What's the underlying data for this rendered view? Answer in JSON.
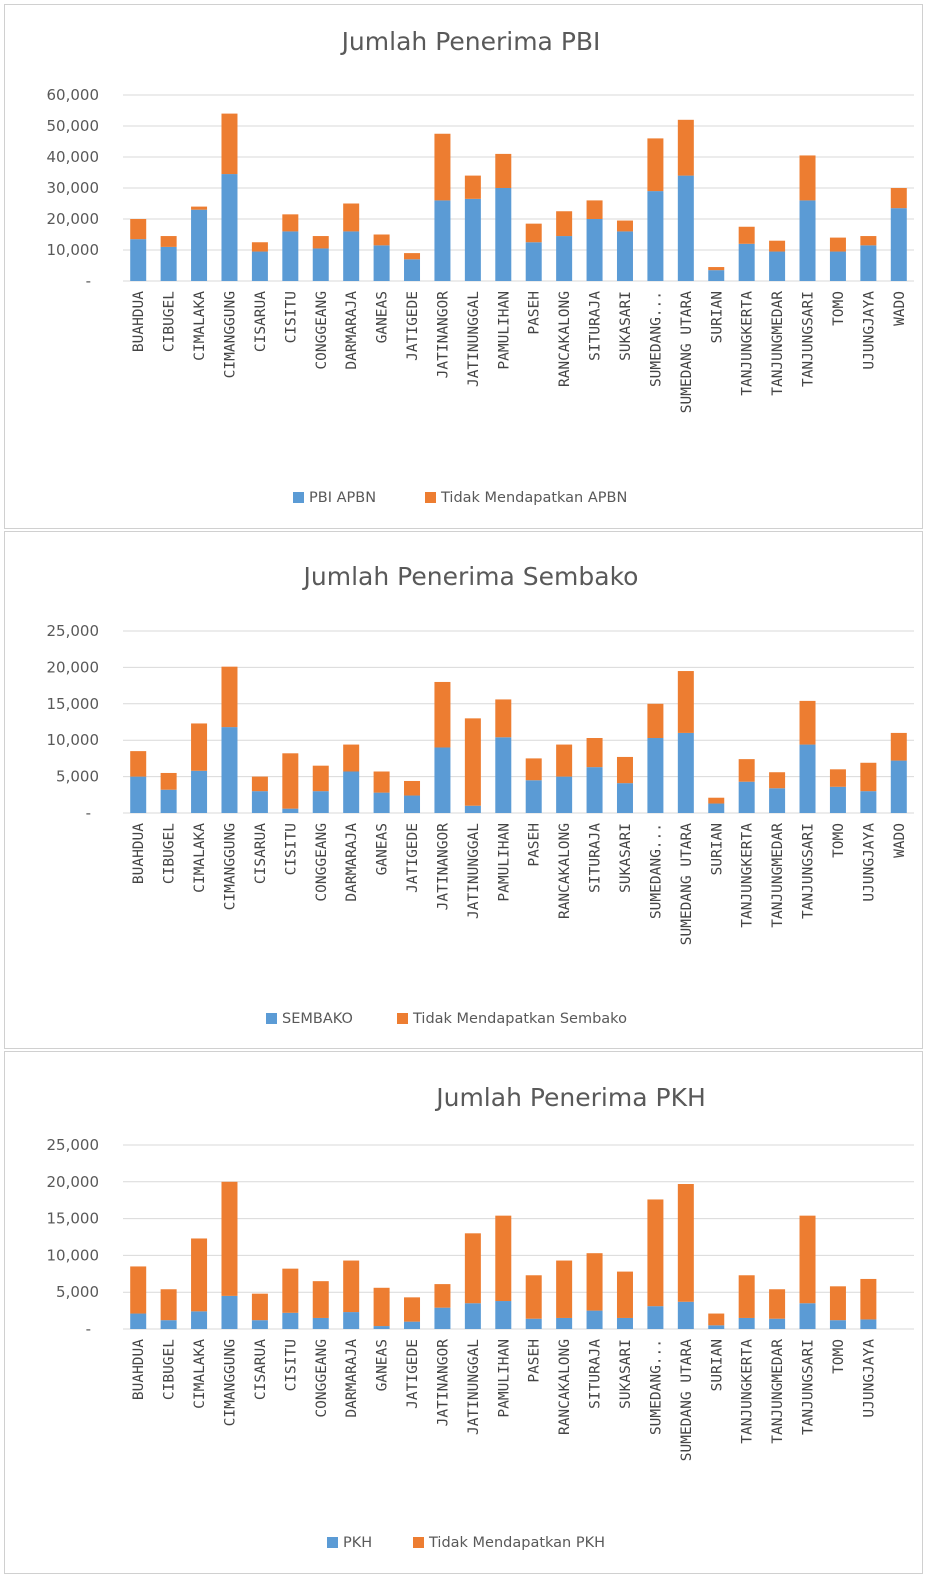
{
  "colors": {
    "series1": "#5B9BD5",
    "series2": "#ED7D31"
  },
  "chart_data": [
    {
      "type": "bar",
      "stacked": true,
      "title": "Jumlah Penerima PBI",
      "xlabel": "",
      "ylabel": "",
      "ylim": [
        0,
        60000
      ],
      "yticks": [
        "-",
        "10,000",
        "20,000",
        "30,000",
        "40,000",
        "50,000",
        "60,000"
      ],
      "grid": true,
      "legend": "bottom",
      "categories": [
        "BUAHDUA",
        "CIBUGEL",
        "CIMALAKA",
        "CIMANGGUNG",
        "CISARUA",
        "CISITU",
        "CONGGEANG",
        "DARMARAJA",
        "GANEAS",
        "JATIGEDE",
        "JATINANGOR",
        "JATINUNGGAL",
        "PAMULIHAN",
        "PASEH",
        "RANCAKALONG",
        "SITURAJA",
        "SUKASARI",
        "SUMEDANG...",
        "SUMEDANG UTARA",
        "SURIAN",
        "TANJUNGKERTA",
        "TANJUNGMEDAR",
        "TANJUNGSARI",
        "TOMO",
        "UJUNGJAYA",
        "WADO"
      ],
      "series": [
        {
          "name": "PBI APBN",
          "values": [
            13500,
            11000,
            23000,
            34500,
            9500,
            16000,
            10500,
            16000,
            11500,
            7000,
            26000,
            26500,
            30000,
            12500,
            14500,
            20000,
            16000,
            29000,
            34000,
            3500,
            12000,
            9500,
            26000,
            9500,
            11500,
            23500
          ]
        },
        {
          "name": "Tidak Mendapatkan APBN",
          "values": [
            6500,
            3500,
            1000,
            19500,
            3000,
            5500,
            4000,
            9000,
            3500,
            2000,
            21500,
            7500,
            11000,
            6000,
            8000,
            6000,
            3500,
            17000,
            18000,
            1000,
            5500,
            3500,
            14500,
            4500,
            3000,
            6500
          ]
        }
      ]
    },
    {
      "type": "bar",
      "stacked": true,
      "title": "Jumlah Penerima Sembako",
      "xlabel": "",
      "ylabel": "",
      "ylim": [
        0,
        25000
      ],
      "yticks": [
        "-",
        "5,000",
        "10,000",
        "15,000",
        "20,000",
        "25,000"
      ],
      "grid": true,
      "legend": "bottom",
      "categories": [
        "BUAHDUA",
        "CIBUGEL",
        "CIMALAKA",
        "CIMANGGUNG",
        "CISARUA",
        "CISITU",
        "CONGGEANG",
        "DARMARAJA",
        "GANEAS",
        "JATIGEDE",
        "JATINANGOR",
        "JATINUNGGAL",
        "PAMULIHAN",
        "PASEH",
        "RANCAKALONG",
        "SITURAJA",
        "SUKASARI",
        "SUMEDANG...",
        "SUMEDANG UTARA",
        "SURIAN",
        "TANJUNGKERTA",
        "TANJUNGMEDAR",
        "TANJUNGSARI",
        "TOMO",
        "UJUNGJAYA",
        "WADO"
      ],
      "series": [
        {
          "name": "SEMBAKO",
          "values": [
            5000,
            3200,
            5800,
            11800,
            3000,
            600,
            3000,
            5700,
            2800,
            2400,
            9000,
            1000,
            10400,
            4500,
            5000,
            6300,
            4100,
            10300,
            11000,
            1300,
            4300,
            3400,
            9400,
            3600,
            3000,
            7200
          ]
        },
        {
          "name": "Tidak Mendapatkan Sembako",
          "values": [
            3500,
            2300,
            6500,
            8300,
            2000,
            7600,
            3500,
            3700,
            2900,
            2000,
            9000,
            12000,
            5200,
            3000,
            4400,
            4000,
            3600,
            4700,
            8500,
            800,
            3100,
            2200,
            6000,
            2400,
            3900,
            3800
          ]
        }
      ]
    },
    {
      "type": "bar",
      "stacked": true,
      "title": "Jumlah Penerima PKH",
      "xlabel": "",
      "ylabel": "",
      "ylim": [
        0,
        25000
      ],
      "yticks": [
        "-",
        "5,000",
        "10,000",
        "15,000",
        "20,000",
        "25,000"
      ],
      "grid": true,
      "legend": "bottom",
      "categories": [
        "BUAHDUA",
        "CIBUGEL",
        "CIMALAKA",
        "CIMANGGUNG",
        "CISARUA",
        "CISITU",
        "CONGGEANG",
        "DARMARAJA",
        "GANEAS",
        "JATIGEDE",
        "JATINANGOR",
        "JATINUNGGAL",
        "PAMULIHAN",
        "PASEH",
        "RANCAKALONG",
        "SITURAJA",
        "SUKASARI",
        "SUMEDANG...",
        "SUMEDANG UTARA",
        "SURIAN",
        "TANJUNGKERTA",
        "TANJUNGMEDAR",
        "TANJUNGSARI",
        "TOMO",
        "UJUNGJAYA"
      ],
      "series": [
        {
          "name": "PKH",
          "values": [
            2100,
            1200,
            2400,
            4500,
            1200,
            2200,
            1500,
            2300,
            400,
            1000,
            2900,
            3500,
            3800,
            1400,
            1500,
            2500,
            1500,
            3100,
            3700,
            500,
            1500,
            1400,
            3500,
            1200,
            1300
          ]
        },
        {
          "name": "Tidak Mendapatkan PKH",
          "values": [
            6400,
            4200,
            9900,
            15500,
            3600,
            6000,
            5000,
            7000,
            5200,
            3300,
            3200,
            9500,
            11600,
            5900,
            7800,
            7800,
            6300,
            14500,
            16000,
            1600,
            5800,
            4000,
            11900,
            4600,
            5500
          ]
        }
      ]
    }
  ]
}
